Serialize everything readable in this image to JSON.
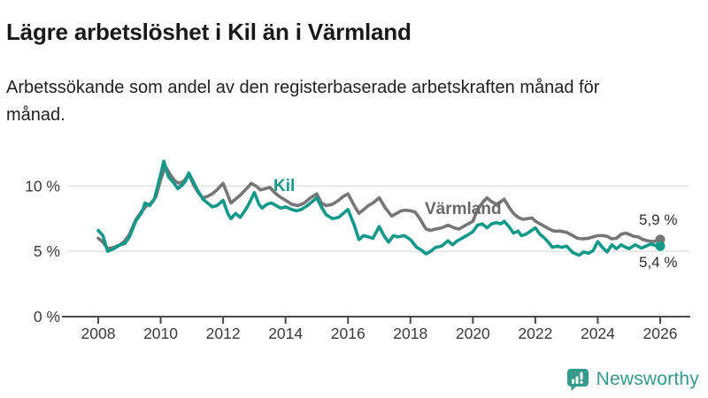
{
  "header": {
    "title": "Lägre arbetslöshet i Kil än i Värmland",
    "subtitle": "Arbetssökande som andel av den registerbaserade arbetskraften månad för månad."
  },
  "chart_data": {
    "type": "line",
    "title": "Lägre arbetslöshet i Kil än i Värmland",
    "xlabel": "",
    "ylabel": "Arbetssökande som andel av den registerbaserade arbetskraften",
    "unit": "%",
    "xlim": [
      2007.8,
      2027.2
    ],
    "ylim": [
      0,
      13
    ],
    "grid": "horizontal",
    "x_ticks": [
      2008,
      2010,
      2012,
      2014,
      2016,
      2018,
      2020,
      2022,
      2024,
      2026
    ],
    "y_ticks": [
      {
        "value": 0,
        "label": "0 %"
      },
      {
        "value": 5,
        "label": "5 %"
      },
      {
        "value": 10,
        "label": "10 %"
      }
    ],
    "colors": {
      "axis": "#4a4a4a",
      "grid": "#e3e3e3"
    },
    "series": [
      {
        "name": "Värmland",
        "color": "#767676",
        "end_label": "5,9 %",
        "end_value": 5.9,
        "points": [
          [
            2008.0,
            6.0
          ],
          [
            2008.15,
            5.7
          ],
          [
            2008.3,
            5.2
          ],
          [
            2008.5,
            5.3
          ],
          [
            2008.7,
            5.5
          ],
          [
            2008.85,
            5.8
          ],
          [
            2009.0,
            6.3
          ],
          [
            2009.2,
            7.4
          ],
          [
            2009.4,
            8.1
          ],
          [
            2009.55,
            8.5
          ],
          [
            2009.7,
            8.7
          ],
          [
            2009.85,
            9.2
          ],
          [
            2010.0,
            10.5
          ],
          [
            2010.15,
            11.5
          ],
          [
            2010.3,
            10.9
          ],
          [
            2010.45,
            10.4
          ],
          [
            2010.6,
            10.2
          ],
          [
            2010.75,
            10.4
          ],
          [
            2010.9,
            10.9
          ],
          [
            2011.05,
            10.1
          ],
          [
            2011.2,
            9.5
          ],
          [
            2011.35,
            9.1
          ],
          [
            2011.5,
            9.2
          ],
          [
            2011.65,
            9.4
          ],
          [
            2011.8,
            9.7
          ],
          [
            2012.0,
            10.2
          ],
          [
            2012.15,
            9.3
          ],
          [
            2012.25,
            8.7
          ],
          [
            2012.4,
            9.0
          ],
          [
            2012.55,
            9.3
          ],
          [
            2012.75,
            9.8
          ],
          [
            2012.9,
            10.2
          ],
          [
            2013.05,
            10.0
          ],
          [
            2013.2,
            9.7
          ],
          [
            2013.35,
            9.8
          ],
          [
            2013.5,
            9.9
          ],
          [
            2013.65,
            9.5
          ],
          [
            2013.8,
            9.2
          ],
          [
            2014.0,
            8.9
          ],
          [
            2014.2,
            8.6
          ],
          [
            2014.4,
            8.5
          ],
          [
            2014.6,
            8.7
          ],
          [
            2014.8,
            9.1
          ],
          [
            2015.0,
            9.4
          ],
          [
            2015.15,
            8.7
          ],
          [
            2015.3,
            8.5
          ],
          [
            2015.5,
            8.6
          ],
          [
            2015.7,
            8.9
          ],
          [
            2015.85,
            9.2
          ],
          [
            2016.0,
            9.4
          ],
          [
            2016.2,
            8.5
          ],
          [
            2016.35,
            7.9
          ],
          [
            2016.5,
            8.2
          ],
          [
            2016.65,
            8.5
          ],
          [
            2016.8,
            8.7
          ],
          [
            2017.0,
            9.1
          ],
          [
            2017.2,
            8.3
          ],
          [
            2017.4,
            7.7
          ],
          [
            2017.55,
            7.9
          ],
          [
            2017.7,
            8.1
          ],
          [
            2017.85,
            8.15
          ],
          [
            2018.0,
            8.1
          ],
          [
            2018.15,
            8.0
          ],
          [
            2018.3,
            7.5
          ],
          [
            2018.5,
            6.7
          ],
          [
            2018.65,
            6.6
          ],
          [
            2018.8,
            6.7
          ],
          [
            2019.0,
            6.8
          ],
          [
            2019.2,
            7.0
          ],
          [
            2019.4,
            6.8
          ],
          [
            2019.55,
            6.7
          ],
          [
            2019.7,
            6.9
          ],
          [
            2019.85,
            7.1
          ],
          [
            2020.0,
            7.3
          ],
          [
            2020.15,
            8.2
          ],
          [
            2020.3,
            8.7
          ],
          [
            2020.45,
            9.1
          ],
          [
            2020.6,
            8.8
          ],
          [
            2020.75,
            8.6
          ],
          [
            2020.9,
            8.8
          ],
          [
            2021.0,
            9.0
          ],
          [
            2021.15,
            8.4
          ],
          [
            2021.3,
            7.9
          ],
          [
            2021.45,
            7.6
          ],
          [
            2021.6,
            7.45
          ],
          [
            2021.75,
            7.5
          ],
          [
            2021.9,
            7.55
          ],
          [
            2022.0,
            7.3
          ],
          [
            2022.15,
            7.1
          ],
          [
            2022.3,
            6.9
          ],
          [
            2022.45,
            6.7
          ],
          [
            2022.6,
            6.55
          ],
          [
            2022.8,
            6.55
          ],
          [
            2023.0,
            6.45
          ],
          [
            2023.2,
            6.2
          ],
          [
            2023.35,
            6.0
          ],
          [
            2023.5,
            5.95
          ],
          [
            2023.7,
            6.0
          ],
          [
            2023.85,
            6.1
          ],
          [
            2024.0,
            6.2
          ],
          [
            2024.15,
            6.2
          ],
          [
            2024.3,
            6.15
          ],
          [
            2024.45,
            5.95
          ],
          [
            2024.6,
            6.0
          ],
          [
            2024.75,
            6.3
          ],
          [
            2024.9,
            6.4
          ],
          [
            2025.0,
            6.3
          ],
          [
            2025.15,
            6.15
          ],
          [
            2025.3,
            6.1
          ],
          [
            2025.45,
            5.9
          ],
          [
            2025.6,
            5.8
          ],
          [
            2025.75,
            5.75
          ],
          [
            2025.9,
            5.8
          ],
          [
            2026.0,
            5.9
          ]
        ]
      },
      {
        "name": "Kil",
        "color": "#13998a",
        "end_label": "5,4 %",
        "end_value": 5.4,
        "points": [
          [
            2008.0,
            6.6
          ],
          [
            2008.15,
            6.2
          ],
          [
            2008.3,
            5.0
          ],
          [
            2008.5,
            5.2
          ],
          [
            2008.7,
            5.5
          ],
          [
            2008.85,
            5.6
          ],
          [
            2009.0,
            6.1
          ],
          [
            2009.2,
            7.3
          ],
          [
            2009.4,
            8.0
          ],
          [
            2009.5,
            8.7
          ],
          [
            2009.65,
            8.5
          ],
          [
            2009.8,
            9.0
          ],
          [
            2010.0,
            10.9
          ],
          [
            2010.1,
            11.9
          ],
          [
            2010.25,
            10.7
          ],
          [
            2010.4,
            10.3
          ],
          [
            2010.55,
            9.8
          ],
          [
            2010.7,
            10.1
          ],
          [
            2010.8,
            10.4
          ],
          [
            2010.9,
            11.0
          ],
          [
            2011.05,
            10.3
          ],
          [
            2011.2,
            9.6
          ],
          [
            2011.35,
            9.0
          ],
          [
            2011.5,
            8.7
          ],
          [
            2011.65,
            8.4
          ],
          [
            2011.8,
            8.5
          ],
          [
            2012.0,
            8.9
          ],
          [
            2012.15,
            7.9
          ],
          [
            2012.25,
            7.5
          ],
          [
            2012.4,
            7.9
          ],
          [
            2012.55,
            7.6
          ],
          [
            2012.75,
            8.3
          ],
          [
            2012.9,
            9.0
          ],
          [
            2013.0,
            9.5
          ],
          [
            2013.15,
            8.6
          ],
          [
            2013.25,
            8.3
          ],
          [
            2013.4,
            8.6
          ],
          [
            2013.55,
            8.7
          ],
          [
            2013.7,
            8.5
          ],
          [
            2013.85,
            8.3
          ],
          [
            2014.0,
            8.4
          ],
          [
            2014.2,
            8.2
          ],
          [
            2014.35,
            8.1
          ],
          [
            2014.5,
            8.2
          ],
          [
            2014.7,
            8.5
          ],
          [
            2014.85,
            8.8
          ],
          [
            2015.0,
            9.1
          ],
          [
            2015.15,
            8.4
          ],
          [
            2015.3,
            7.8
          ],
          [
            2015.5,
            7.5
          ],
          [
            2015.7,
            7.6
          ],
          [
            2015.85,
            7.9
          ],
          [
            2016.0,
            8.2
          ],
          [
            2016.2,
            7.0
          ],
          [
            2016.35,
            5.9
          ],
          [
            2016.5,
            6.2
          ],
          [
            2016.65,
            6.1
          ],
          [
            2016.8,
            6.0
          ],
          [
            2017.0,
            6.9
          ],
          [
            2017.15,
            6.2
          ],
          [
            2017.3,
            5.7
          ],
          [
            2017.45,
            6.2
          ],
          [
            2017.6,
            6.1
          ],
          [
            2017.8,
            6.2
          ],
          [
            2018.0,
            5.9
          ],
          [
            2018.2,
            5.3
          ],
          [
            2018.35,
            5.1
          ],
          [
            2018.5,
            4.8
          ],
          [
            2018.65,
            5.0
          ],
          [
            2018.8,
            5.3
          ],
          [
            2019.0,
            5.4
          ],
          [
            2019.2,
            5.8
          ],
          [
            2019.35,
            5.5
          ],
          [
            2019.5,
            5.8
          ],
          [
            2019.65,
            6.0
          ],
          [
            2019.8,
            6.2
          ],
          [
            2020.0,
            6.5
          ],
          [
            2020.15,
            7.0
          ],
          [
            2020.3,
            7.1
          ],
          [
            2020.45,
            6.8
          ],
          [
            2020.6,
            7.1
          ],
          [
            2020.75,
            7.2
          ],
          [
            2020.9,
            7.1
          ],
          [
            2021.0,
            7.3
          ],
          [
            2021.15,
            6.9
          ],
          [
            2021.3,
            6.4
          ],
          [
            2021.45,
            6.55
          ],
          [
            2021.55,
            6.2
          ],
          [
            2021.7,
            6.3
          ],
          [
            2021.85,
            6.55
          ],
          [
            2022.0,
            6.8
          ],
          [
            2022.15,
            6.3
          ],
          [
            2022.3,
            6.0
          ],
          [
            2022.45,
            5.6
          ],
          [
            2022.55,
            5.3
          ],
          [
            2022.7,
            5.4
          ],
          [
            2022.85,
            5.3
          ],
          [
            2023.0,
            5.4
          ],
          [
            2023.2,
            4.9
          ],
          [
            2023.4,
            4.7
          ],
          [
            2023.55,
            4.95
          ],
          [
            2023.7,
            4.85
          ],
          [
            2023.85,
            5.05
          ],
          [
            2024.0,
            5.75
          ],
          [
            2024.15,
            5.3
          ],
          [
            2024.3,
            4.95
          ],
          [
            2024.45,
            5.5
          ],
          [
            2024.6,
            5.2
          ],
          [
            2024.75,
            5.5
          ],
          [
            2024.9,
            5.3
          ],
          [
            2025.0,
            5.2
          ],
          [
            2025.2,
            5.5
          ],
          [
            2025.4,
            5.25
          ],
          [
            2025.55,
            5.4
          ],
          [
            2025.7,
            5.55
          ],
          [
            2025.85,
            5.45
          ],
          [
            2026.0,
            5.4
          ]
        ]
      }
    ]
  },
  "logo": {
    "text": "Newsworthy",
    "color": "#35998b",
    "icon": "bar-chart-speech-bubble-icon"
  }
}
